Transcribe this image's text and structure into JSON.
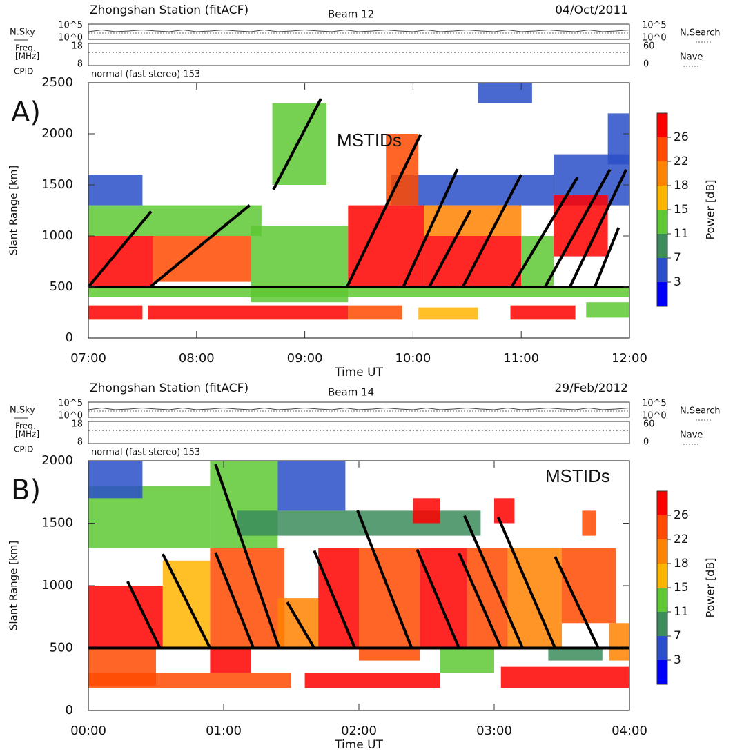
{
  "chart_data": [
    {
      "type": "range-time",
      "title": "Zhongshan Station (fitACF)",
      "subtitle": "Beam 12",
      "date": "04/Oct/2011",
      "panel_label": "A)",
      "annotation": "MSTIDs",
      "x_label": "Time UT",
      "y_label": "Slant Range [km]",
      "cpid_label": "CPID",
      "cpid_text": "normal (fast stereo) 153",
      "nsky_label": "N.Sky",
      "nsearch_label": "N.Search",
      "freq_label": [
        "Freq.",
        "[MHz]"
      ],
      "nave_label": "Nave",
      "nsky_ticks": [
        {
          "value": 100000,
          "label": "10^5"
        },
        {
          "value": 1,
          "label": "10^0"
        }
      ],
      "freq_ylim": [
        8,
        18
      ],
      "freq_ticks": [
        18,
        8
      ],
      "nave_ylim": [
        0,
        60
      ],
      "nave_ticks": [
        60,
        0
      ],
      "xlim": [
        7,
        12
      ],
      "xticks": [
        {
          "value": 7,
          "label": "07:00"
        },
        {
          "value": 8,
          "label": "08:00"
        },
        {
          "value": 9,
          "label": "09:00"
        },
        {
          "value": 10,
          "label": "10:00"
        },
        {
          "value": 11,
          "label": "11:00"
        },
        {
          "value": 12,
          "label": "12:00"
        }
      ],
      "ylim": [
        0,
        2500
      ],
      "yticks": [
        0,
        500,
        1000,
        1500,
        2000,
        2500
      ],
      "colorbar": {
        "label": "Power [dB]",
        "ticks": [
          3,
          7,
          11,
          15,
          18,
          22,
          26
        ],
        "colors": [
          "#0000ff",
          "#2a4fc8",
          "#3b8c5c",
          "#5ec832",
          "#ffb400",
          "#ff8200",
          "#ff4a00",
          "#ff0000"
        ]
      },
      "patches": [
        {
          "t": [
            7.0,
            12.0
          ],
          "r": [
            400,
            500
          ],
          "power": 11
        },
        {
          "t": [
            7.0,
            7.5
          ],
          "r": [
            180,
            320
          ],
          "power": 26
        },
        {
          "t": [
            7.55,
            9.4
          ],
          "r": [
            180,
            320
          ],
          "power": 28
        },
        {
          "t": [
            9.4,
            9.9
          ],
          "r": [
            180,
            320
          ],
          "power": 22
        },
        {
          "t": [
            10.05,
            10.6
          ],
          "r": [
            180,
            300
          ],
          "power": 15
        },
        {
          "t": [
            10.9,
            11.5
          ],
          "r": [
            180,
            320
          ],
          "power": 26
        },
        {
          "t": [
            11.6,
            12.0
          ],
          "r": [
            200,
            350
          ],
          "power": 11
        },
        {
          "t": [
            7.0,
            8.6
          ],
          "r": [
            1000,
            1300
          ],
          "power": 13
        },
        {
          "t": [
            7.0,
            7.6
          ],
          "r": [
            500,
            1000
          ],
          "power": 26
        },
        {
          "t": [
            7.6,
            8.5
          ],
          "r": [
            550,
            1000
          ],
          "power": 22
        },
        {
          "t": [
            8.5,
            9.4
          ],
          "r": [
            350,
            1100
          ],
          "power": 11
        },
        {
          "t": [
            7.0,
            7.5
          ],
          "r": [
            1300,
            1600
          ],
          "power": 5
        },
        {
          "t": [
            8.7,
            9.2
          ],
          "r": [
            1500,
            2300
          ],
          "power": 13
        },
        {
          "t": [
            9.8,
            11.3
          ],
          "r": [
            1300,
            1600
          ],
          "power": 6
        },
        {
          "t": [
            11.3,
            12.0
          ],
          "r": [
            1300,
            1800
          ],
          "power": 6
        },
        {
          "t": [
            9.4,
            10.1
          ],
          "r": [
            500,
            1300
          ],
          "power": 28
        },
        {
          "t": [
            9.75,
            10.05
          ],
          "r": [
            1300,
            2000
          ],
          "power": 22
        },
        {
          "t": [
            10.1,
            11.0
          ],
          "r": [
            1000,
            1300
          ],
          "power": 18
        },
        {
          "t": [
            10.1,
            11.0
          ],
          "r": [
            500,
            1000
          ],
          "power": 26
        },
        {
          "t": [
            11.0,
            11.3
          ],
          "r": [
            500,
            1000
          ],
          "power": 13
        },
        {
          "t": [
            11.3,
            11.8
          ],
          "r": [
            800,
            1400
          ],
          "power": 26
        },
        {
          "t": [
            10.6,
            11.1
          ],
          "r": [
            2300,
            2500
          ],
          "power": 5
        },
        {
          "t": [
            11.8,
            12.0
          ],
          "r": [
            1700,
            2200
          ],
          "power": 4
        }
      ],
      "lines": [
        {
          "x": [
            7.0,
            7.58
          ],
          "y": [
            500,
            1240
          ]
        },
        {
          "x": [
            7.57,
            8.49
          ],
          "y": [
            500,
            1300
          ]
        },
        {
          "x": [
            8.71,
            9.15
          ],
          "y": [
            1453,
            2345
          ]
        },
        {
          "x": [
            9.39,
            10.07
          ],
          "y": [
            500,
            1993
          ]
        },
        {
          "x": [
            9.91,
            10.41
          ],
          "y": [
            500,
            1655
          ]
        },
        {
          "x": [
            10.15,
            10.53
          ],
          "y": [
            500,
            1250
          ]
        },
        {
          "x": [
            10.46,
            11.0
          ],
          "y": [
            500,
            1601
          ]
        },
        {
          "x": [
            10.91,
            11.52
          ],
          "y": [
            500,
            1574
          ]
        },
        {
          "x": [
            11.22,
            11.82
          ],
          "y": [
            500,
            1650
          ]
        },
        {
          "x": [
            11.45,
            11.97
          ],
          "y": [
            500,
            1650
          ]
        },
        {
          "x": [
            11.68,
            11.9
          ],
          "y": [
            500,
            1081
          ]
        },
        {
          "x": [
            7.0,
            12.0
          ],
          "y": [
            500,
            500
          ]
        }
      ]
    },
    {
      "type": "range-time",
      "title": "Zhongshan Station (fitACF)",
      "subtitle": "Beam 14",
      "date": "29/Feb/2012",
      "panel_label": "B)",
      "annotation": "MSTIDs",
      "x_label": "Time UT",
      "y_label": "Slant Range [km]",
      "cpid_label": "CPID",
      "cpid_text": "normal (fast stereo) 153",
      "nsky_label": "N.Sky",
      "nsearch_label": "N.Search",
      "freq_label": [
        "Freq.",
        "[MHz]"
      ],
      "nave_label": "Nave",
      "nsky_ticks": [
        {
          "value": 100000,
          "label": "10^5"
        },
        {
          "value": 1,
          "label": "10^0"
        }
      ],
      "freq_ylim": [
        8,
        18
      ],
      "freq_ticks": [
        18,
        8
      ],
      "nave_ylim": [
        0,
        60
      ],
      "nave_ticks": [
        60,
        0
      ],
      "xlim": [
        0,
        4
      ],
      "xticks": [
        {
          "value": 0,
          "label": "00:00"
        },
        {
          "value": 1,
          "label": "01:00"
        },
        {
          "value": 2,
          "label": "02:00"
        },
        {
          "value": 3,
          "label": "03:00"
        },
        {
          "value": 4,
          "label": "04:00"
        }
      ],
      "ylim": [
        0,
        2000
      ],
      "yticks": [
        0,
        500,
        1000,
        1500,
        2000
      ],
      "colorbar": {
        "label": "Power [dB]",
        "ticks": [
          3,
          7,
          11,
          15,
          18,
          22,
          26
        ],
        "colors": [
          "#0000ff",
          "#2a4fc8",
          "#3b8c5c",
          "#5ec832",
          "#ffb400",
          "#ff8200",
          "#ff4a00",
          "#ff0000"
        ]
      },
      "patches": [
        {
          "t": [
            0.0,
            0.9
          ],
          "r": [
            1300,
            1800
          ],
          "power": 11
        },
        {
          "t": [
            0.0,
            0.4
          ],
          "r": [
            1700,
            2000
          ],
          "power": 6
        },
        {
          "t": [
            0.9,
            1.4
          ],
          "r": [
            1300,
            2000
          ],
          "power": 13
        },
        {
          "t": [
            1.1,
            2.9
          ],
          "r": [
            1400,
            1600
          ],
          "power": 8
        },
        {
          "t": [
            1.4,
            1.9
          ],
          "r": [
            1600,
            2000
          ],
          "power": 6
        },
        {
          "t": [
            0.0,
            0.55
          ],
          "r": [
            500,
            1000
          ],
          "power": 28
        },
        {
          "t": [
            0.0,
            0.5
          ],
          "r": [
            200,
            500
          ],
          "power": 24
        },
        {
          "t": [
            0.55,
            0.9
          ],
          "r": [
            500,
            1200
          ],
          "power": 15
        },
        {
          "t": [
            0.9,
            1.45
          ],
          "r": [
            500,
            1300
          ],
          "power": 24
        },
        {
          "t": [
            1.4,
            1.7
          ],
          "r": [
            500,
            900
          ],
          "power": 20
        },
        {
          "t": [
            1.7,
            2.0
          ],
          "r": [
            500,
            1300
          ],
          "power": 26
        },
        {
          "t": [
            2.0,
            2.45
          ],
          "r": [
            400,
            1300
          ],
          "power": 24
        },
        {
          "t": [
            2.45,
            2.8
          ],
          "r": [
            500,
            1300
          ],
          "power": 28
        },
        {
          "t": [
            2.8,
            3.1
          ],
          "r": [
            500,
            1300
          ],
          "power": 22
        },
        {
          "t": [
            3.1,
            3.5
          ],
          "r": [
            500,
            1300
          ],
          "power": 18
        },
        {
          "t": [
            3.5,
            3.9
          ],
          "r": [
            700,
            1300
          ],
          "power": 22
        },
        {
          "t": [
            2.4,
            2.6
          ],
          "r": [
            1500,
            1700
          ],
          "power": 26
        },
        {
          "t": [
            3.0,
            3.15
          ],
          "r": [
            1500,
            1700
          ],
          "power": 26
        },
        {
          "t": [
            3.65,
            3.75
          ],
          "r": [
            1400,
            1600
          ],
          "power": 22
        },
        {
          "t": [
            0.0,
            1.5
          ],
          "r": [
            180,
            300
          ],
          "power": 22
        },
        {
          "t": [
            1.6,
            2.6
          ],
          "r": [
            180,
            300
          ],
          "power": 26
        },
        {
          "t": [
            3.05,
            4.0
          ],
          "r": [
            180,
            350
          ],
          "power": 27
        },
        {
          "t": [
            3.85,
            4.0
          ],
          "r": [
            400,
            700
          ],
          "power": 20
        },
        {
          "t": [
            0.9,
            1.2
          ],
          "r": [
            300,
            500
          ],
          "power": 26
        },
        {
          "t": [
            2.6,
            3.0
          ],
          "r": [
            300,
            500
          ],
          "power": 11
        },
        {
          "t": [
            3.4,
            3.8
          ],
          "r": [
            400,
            500
          ],
          "power": 7
        }
      ],
      "lines": [
        {
          "x": [
            0.29,
            0.53
          ],
          "y": [
            1033,
            500
          ]
        },
        {
          "x": [
            0.55,
            0.9
          ],
          "y": [
            1254,
            500
          ]
        },
        {
          "x": [
            0.94,
            1.41
          ],
          "y": [
            1972,
            500
          ]
        },
        {
          "x": [
            0.94,
            1.22
          ],
          "y": [
            1265,
            500
          ]
        },
        {
          "x": [
            1.47,
            1.67
          ],
          "y": [
            867,
            500
          ]
        },
        {
          "x": [
            1.67,
            1.97
          ],
          "y": [
            1280,
            500
          ]
        },
        {
          "x": [
            1.99,
            2.39
          ],
          "y": [
            1602,
            500
          ]
        },
        {
          "x": [
            2.43,
            2.74
          ],
          "y": [
            1290,
            500
          ]
        },
        {
          "x": [
            2.74,
            3.05
          ],
          "y": [
            1260,
            500
          ]
        },
        {
          "x": [
            2.78,
            3.21
          ],
          "y": [
            1560,
            500
          ]
        },
        {
          "x": [
            3.03,
            3.45
          ],
          "y": [
            1547,
            500
          ]
        },
        {
          "x": [
            3.45,
            3.77
          ],
          "y": [
            1232,
            500
          ]
        },
        {
          "x": [
            0.0,
            4.0
          ],
          "y": [
            500,
            500
          ]
        }
      ]
    }
  ]
}
